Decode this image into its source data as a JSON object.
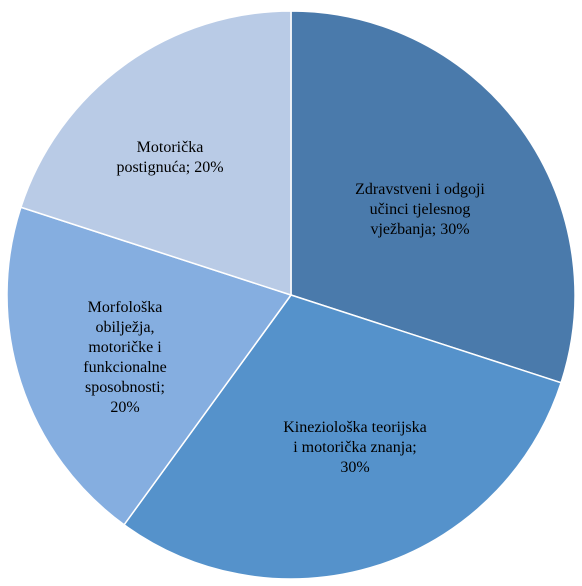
{
  "chart_data": {
    "type": "pie",
    "categories": [
      "Zdravstveni i odgoji učinci tjelesnog vježbanja;",
      "Kineziološka teorijska i motorička znanja;",
      "Morfološka obilježja, motoričke i funkcionalne sposobnosti;",
      "Motorička postignuća;"
    ],
    "values": [
      30,
      30,
      20,
      20
    ],
    "value_labels": [
      "30%",
      "30%",
      "20%",
      "20%"
    ],
    "colors": [
      "#4a7aab",
      "#5592cb",
      "#85aee0",
      "#b9cbe6"
    ]
  }
}
